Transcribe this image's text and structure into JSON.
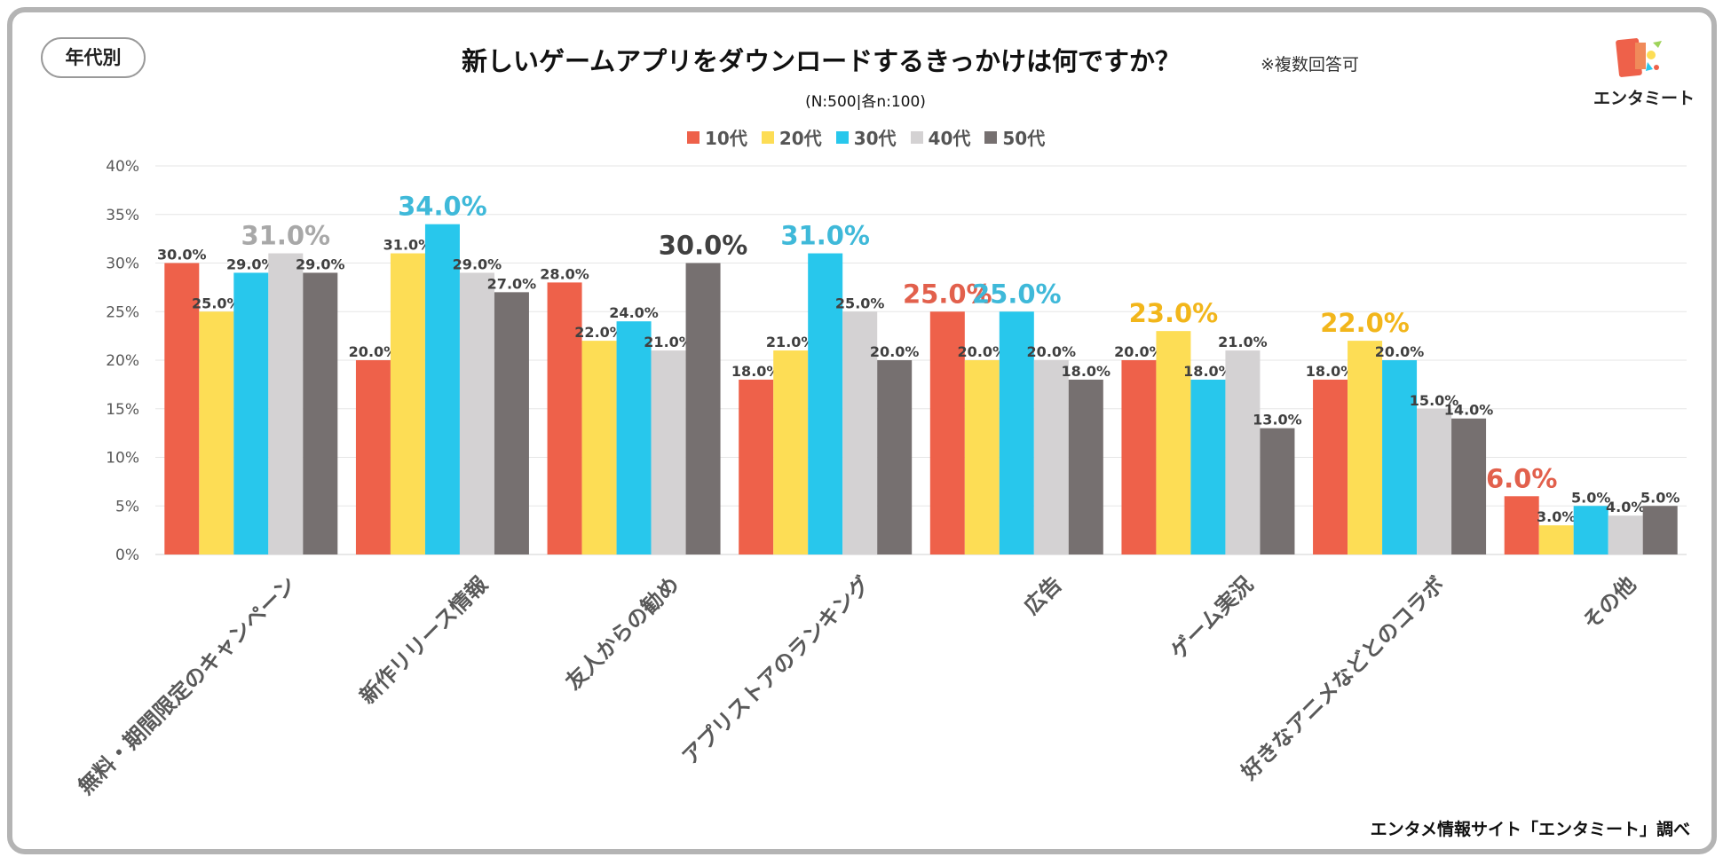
{
  "badge": "年代別",
  "title": "新しいゲームアプリをダウンロードするきっかけは何ですか？",
  "note": "※複数回答可",
  "sample": "(N:500|各n:100)",
  "logo_text": "エンタミート",
  "source": "エンタメ情報サイト「エンタミート」調べ",
  "colors": {
    "10代": "#ee614a",
    "20代": "#fddd55",
    "30代": "#28c7ec",
    "40代": "#d4d2d3",
    "50代": "#767070",
    "highlight_text": [
      "#e2604c",
      "#f2b61b",
      "#3fb9d9",
      "#a8a8a8",
      "#404040"
    ]
  },
  "chart_data": {
    "type": "bar",
    "title": "新しいゲームアプリをダウンロードするきっかけは何ですか？",
    "xlabel": "",
    "ylabel": "",
    "ylim": [
      0,
      40
    ],
    "yticks": [
      "0%",
      "5%",
      "10%",
      "15%",
      "20%",
      "25%",
      "30%",
      "35%",
      "40%"
    ],
    "categories": [
      "無料・期間限定のキャンペーン",
      "新作リリース情報",
      "友人からの勧め",
      "アプリストアのランキング",
      "広告",
      "ゲーム実況",
      "好きなアニメなどとのコラボ",
      "その他"
    ],
    "series": [
      {
        "name": "10代",
        "values": [
          30.0,
          20.0,
          28.0,
          18.0,
          25.0,
          20.0,
          18.0,
          6.0
        ],
        "labels": [
          "30.0%",
          "20.0%",
          "28.0%",
          "18.0%",
          "25.0%",
          "20.0%",
          "18.0%",
          "6.0%"
        ]
      },
      {
        "name": "20代",
        "values": [
          25.0,
          31.0,
          22.0,
          21.0,
          20.0,
          23.0,
          22.0,
          3.0
        ],
        "labels": [
          "25.0%",
          "31.0%",
          "22.0%",
          "21.0%",
          "20.0%",
          "23.0%",
          "22.0%",
          "3.0%"
        ]
      },
      {
        "name": "30代",
        "values": [
          29.0,
          34.0,
          24.0,
          31.0,
          25.0,
          18.0,
          20.0,
          5.0
        ],
        "labels": [
          "29.0%",
          "34.0%",
          "24.0%",
          "31.0%",
          "25.0%",
          "18.0%",
          "20.0%",
          "5.0%"
        ]
      },
      {
        "name": "40代",
        "values": [
          31.0,
          29.0,
          21.0,
          25.0,
          20.0,
          21.0,
          15.0,
          4.0
        ],
        "labels": [
          "31.0%",
          "29.0%",
          "21.0%",
          "25.0%",
          "20.0%",
          "21.0%",
          "15.0%",
          "4.0%"
        ]
      },
      {
        "name": "50代",
        "values": [
          29.0,
          27.0,
          30.0,
          20.0,
          18.0,
          13.0,
          14.0,
          5.0
        ],
        "labels": [
          "29.0%",
          "27.0%",
          "30.0%",
          "20.0%",
          "18.0%",
          "13.0%",
          "14.0%",
          "5.0%"
        ]
      }
    ],
    "highlights": [
      [
        0,
        3
      ],
      [
        1,
        2
      ],
      [
        2,
        4
      ],
      [
        3,
        2
      ],
      [
        4,
        0
      ],
      [
        4,
        2
      ],
      [
        5,
        1
      ],
      [
        6,
        1
      ],
      [
        7,
        0
      ]
    ],
    "legend_position": "top-center",
    "grid": true
  }
}
